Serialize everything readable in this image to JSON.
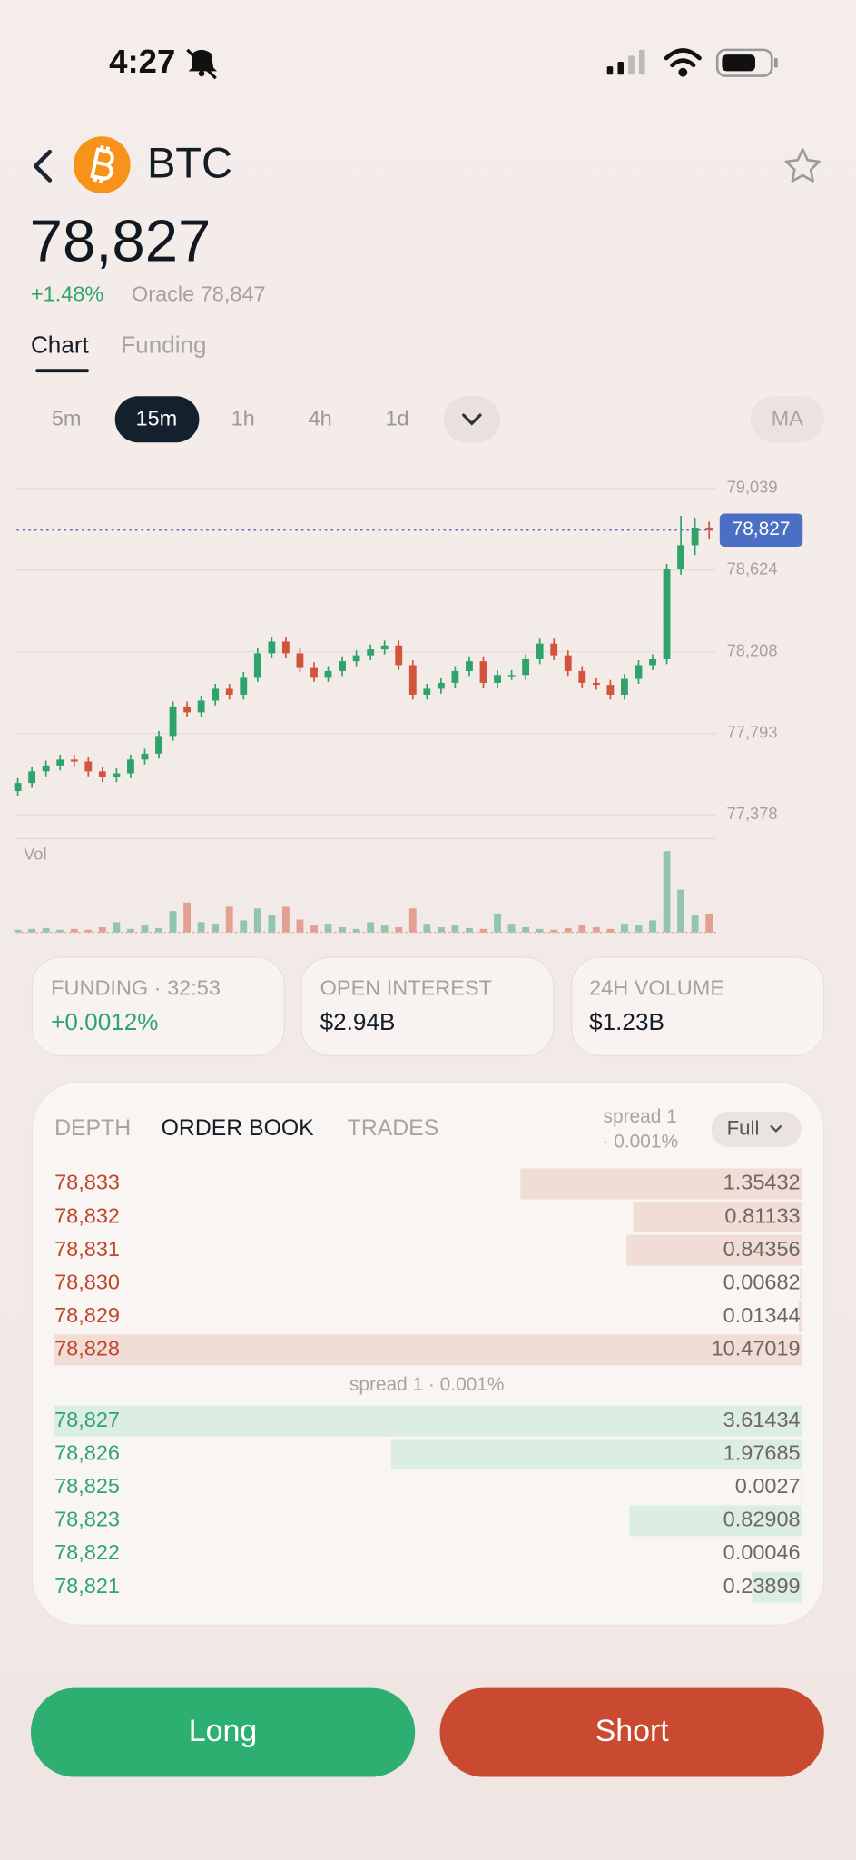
{
  "status_bar": {
    "time": "4:27"
  },
  "header": {
    "symbol": "BTC",
    "price": "78,827",
    "change": "+1.48%",
    "oracle": "Oracle 78,847"
  },
  "tabs": [
    "Chart",
    "Funding"
  ],
  "intervals": [
    "5m",
    "15m",
    "1h",
    "4h",
    "1d"
  ],
  "indicator_button": "MA",
  "chart": {
    "type": "candlestick",
    "ylim": [
      77300,
      79110
    ],
    "yticks": [
      {
        "value": 79039,
        "label": "79,039"
      },
      {
        "value": 78624,
        "label": "78,624"
      },
      {
        "value": 78208,
        "label": "78,208"
      },
      {
        "value": 77793,
        "label": "77,793"
      },
      {
        "value": 77378,
        "label": "77,378"
      }
    ],
    "grid": true,
    "up_color": "#2ea36b",
    "down_color": "#d2553b",
    "last_price": {
      "value": 78827,
      "label": "78,827"
    },
    "volume_label": "Vol",
    "open": [
      77500,
      77541,
      77600,
      77630,
      77660,
      77650,
      77600,
      77570,
      77590,
      77660,
      77690,
      77780,
      77930,
      77900,
      77960,
      78020,
      77990,
      78080,
      78200,
      78260,
      78200,
      78130,
      78080,
      78110,
      78160,
      78190,
      78220,
      78240,
      78140,
      77990,
      78020,
      78050,
      78110,
      78160,
      78050,
      78090,
      78090,
      78170,
      78250,
      78190,
      78110,
      78050,
      78040,
      77990,
      78070,
      78140,
      78170,
      78630,
      78750,
      78840
    ],
    "high": [
      77566,
      77625,
      77655,
      77685,
      77685,
      77675,
      77625,
      77615,
      77685,
      77715,
      77805,
      77955,
      77955,
      77985,
      78045,
      78045,
      78105,
      78225,
      78285,
      78285,
      78225,
      78155,
      78135,
      78185,
      78215,
      78245,
      78265,
      78265,
      78165,
      78045,
      78075,
      78135,
      78185,
      78185,
      78115,
      78115,
      78195,
      78275,
      78275,
      78215,
      78135,
      78075,
      78065,
      78095,
      78165,
      78195,
      78655,
      78900,
      78890,
      78870
    ],
    "low": [
      77475,
      77516,
      77575,
      77605,
      77625,
      77575,
      77545,
      77545,
      77565,
      77635,
      77665,
      77755,
      77875,
      77875,
      77935,
      77965,
      77965,
      78055,
      78175,
      78175,
      78105,
      78055,
      78055,
      78085,
      78135,
      78165,
      78195,
      78115,
      77965,
      77965,
      77995,
      78025,
      78085,
      78025,
      78025,
      78065,
      78065,
      78145,
      78165,
      78085,
      78025,
      78015,
      77965,
      77965,
      78045,
      78115,
      78145,
      78600,
      78700,
      78780
    ],
    "close": [
      77541,
      77600,
      77630,
      77660,
      77650,
      77600,
      77570,
      77590,
      77660,
      77690,
      77780,
      77930,
      77900,
      77960,
      78020,
      77990,
      78080,
      78200,
      78260,
      78200,
      78130,
      78080,
      78110,
      78160,
      78190,
      78220,
      78240,
      78140,
      77990,
      78020,
      78050,
      78110,
      78160,
      78050,
      78090,
      78090,
      78170,
      78250,
      78190,
      78110,
      78050,
      78040,
      77990,
      78070,
      78140,
      78170,
      78630,
      78750,
      78840,
      78827
    ],
    "volume": [
      3,
      4,
      5,
      3,
      4,
      3,
      6,
      12,
      4,
      8,
      5,
      25,
      35,
      12,
      10,
      30,
      14,
      28,
      20,
      30,
      15,
      8,
      10,
      6,
      4,
      12,
      8,
      6,
      28,
      10,
      6,
      8,
      5,
      4,
      22,
      10,
      6,
      4,
      3,
      5,
      8,
      6,
      4,
      10,
      8,
      14,
      95,
      50,
      20,
      22
    ]
  },
  "stats": [
    {
      "label": "FUNDING · 32:53",
      "value": "+0.0012%"
    },
    {
      "label": "OPEN INTEREST",
      "value": "$2.94B"
    },
    {
      "label": "24H VOLUME",
      "value": "$1.23B"
    }
  ],
  "order_book": {
    "tabs": [
      "DEPTH",
      "ORDER BOOK",
      "TRADES"
    ],
    "spread_header": [
      "spread 1",
      "· 0.001%"
    ],
    "mode": "Full",
    "spread": "spread 1 · 0.001%",
    "asks": [
      {
        "price": "78,833",
        "size": 1.35432
      },
      {
        "price": "78,832",
        "size": 0.81133
      },
      {
        "price": "78,831",
        "size": 0.84356
      },
      {
        "price": "78,830",
        "size": 0.00682
      },
      {
        "price": "78,829",
        "size": 0.01344
      },
      {
        "price": "78,828",
        "size": 10.47019
      }
    ],
    "bids": [
      {
        "price": "78,827",
        "size": 3.61434
      },
      {
        "price": "78,826",
        "size": 1.97685
      },
      {
        "price": "78,825",
        "size": 0.0027
      },
      {
        "price": "78,823",
        "size": 0.82908
      },
      {
        "price": "78,822",
        "size": 0.00046
      },
      {
        "price": "78,821",
        "size": 0.23899
      }
    ]
  },
  "actions": {
    "long": "Long",
    "short": "Short"
  }
}
